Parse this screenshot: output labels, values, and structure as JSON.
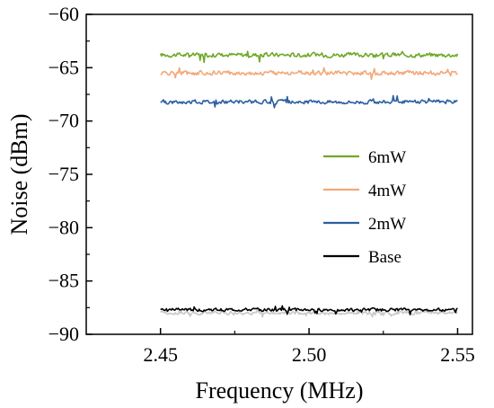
{
  "chart_data": {
    "type": "line",
    "title": "",
    "xlabel": "Frequency (MHz)",
    "ylabel": "Noise (dBm)",
    "xlim": [
      2.425,
      2.555
    ],
    "ylim": [
      -90,
      -60
    ],
    "xticks": [
      "2.45",
      "2.50",
      "2.55"
    ],
    "xtick_values": [
      2.45,
      2.5,
      2.55
    ],
    "yticks": [
      "−60",
      "−65",
      "−70",
      "−75",
      "−80",
      "−85",
      "−90"
    ],
    "ytick_values": [
      -60,
      -65,
      -70,
      -75,
      -80,
      -85,
      -90
    ],
    "grid": false,
    "legend_position": "right",
    "series": [
      {
        "name": "6mW",
        "color": "#6fa828",
        "x_range": [
          2.45,
          2.55
        ],
        "level": -63.8,
        "noise": 0.28
      },
      {
        "name": "4mW",
        "color": "#f3a878",
        "x_range": [
          2.45,
          2.55
        ],
        "level": -65.5,
        "noise": 0.28
      },
      {
        "name": "2mW",
        "color": "#2b5fa0",
        "x_range": [
          2.45,
          2.55
        ],
        "level": -68.2,
        "noise": 0.25
      },
      {
        "name": "Base",
        "color": "#000000",
        "x_range": [
          2.45,
          2.55
        ],
        "level": -87.7,
        "noise": 0.2
      },
      {
        "name": "",
        "color": "#c8c8c8",
        "x_range": [
          2.45,
          2.55
        ],
        "level": -88.0,
        "noise": 0.22
      }
    ]
  }
}
